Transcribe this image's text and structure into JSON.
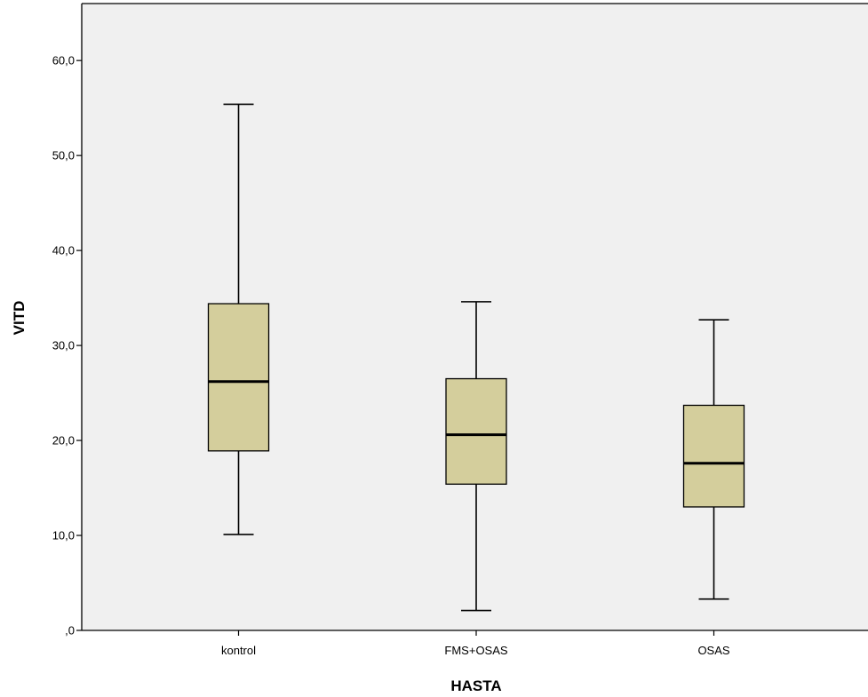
{
  "chart_data": {
    "type": "boxplot",
    "title": "",
    "xlabel": "HASTA",
    "ylabel": "VITD",
    "ylim": [
      0,
      66
    ],
    "yticks": [
      0,
      10,
      20,
      30,
      40,
      50,
      60
    ],
    "ytick_labels": [
      ",0",
      "10,0",
      "20,0",
      "30,0",
      "40,0",
      "50,0",
      "60,0"
    ],
    "grid": false,
    "categories": [
      "kontrol",
      "FMS+OSAS",
      "OSAS"
    ],
    "boxes": [
      {
        "category": "kontrol",
        "whisker_low": 10.1,
        "q1": 18.9,
        "median": 26.2,
        "q3": 34.4,
        "whisker_high": 55.4
      },
      {
        "category": "FMS+OSAS",
        "whisker_low": 2.1,
        "q1": 15.4,
        "median": 20.6,
        "q3": 26.5,
        "whisker_high": 34.6
      },
      {
        "category": "OSAS",
        "whisker_low": 3.3,
        "q1": 13.0,
        "median": 17.6,
        "q3": 23.7,
        "whisker_high": 32.7
      }
    ],
    "colors": {
      "plot_background": "#f0f0f0",
      "box_fill": "#d4ce9c",
      "stroke": "#000000"
    }
  }
}
